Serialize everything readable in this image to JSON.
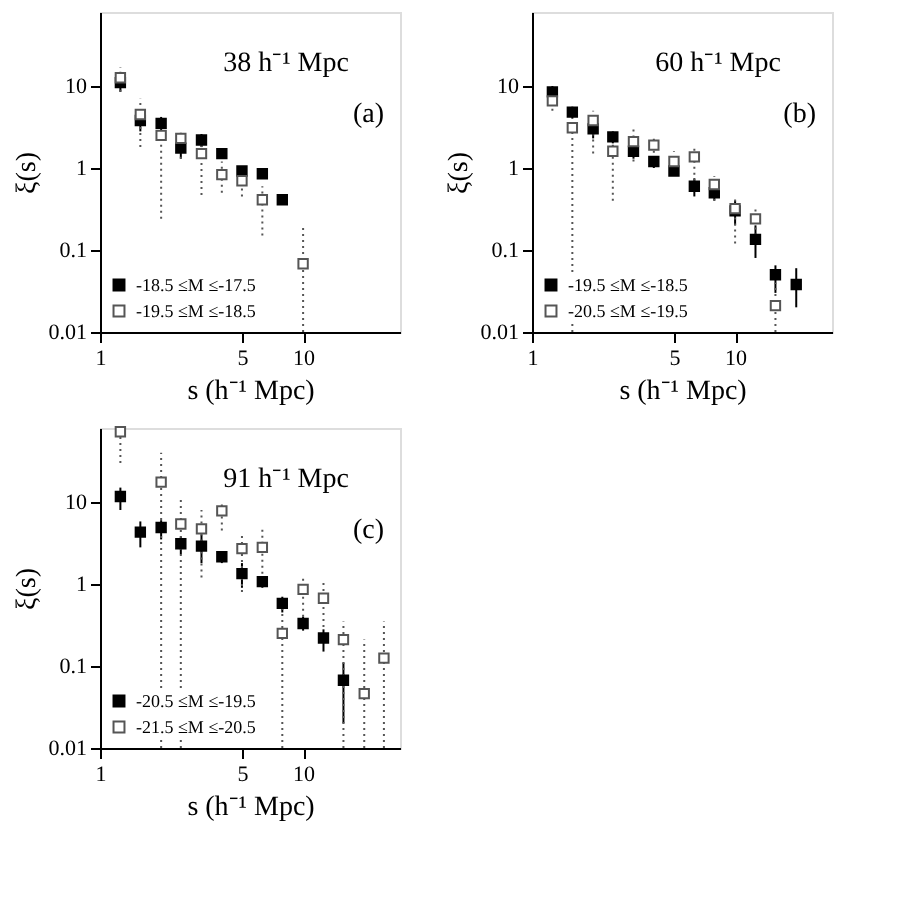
{
  "chart_data": [
    {
      "type": "scatter",
      "title": "38 h⁻¹ Mpc",
      "annotations": [
        "(a)"
      ],
      "xlabel": "s (h⁻¹ Mpc)",
      "ylabel": "ξ(s)",
      "log": "xy",
      "xlim": [
        1,
        30
      ],
      "xticks": [
        1,
        5,
        10
      ],
      "ylim": [
        0.01,
        80
      ],
      "yticks": [
        0.01,
        0.1,
        1,
        10
      ],
      "grid": false,
      "legend": "bottom left",
      "marker": "square",
      "series": [
        {
          "name": "-18.5 ≤M ≤-17.5",
          "color": "#000000",
          "line_style": "solid",
          "x": [
            1.26,
            1.58,
            2.0,
            2.5,
            3.16,
            3.98,
            5.0,
            6.3,
            7.9
          ],
          "values": [
            11,
            3.8,
            3.5,
            1.75,
            2.2,
            1.5,
            0.92,
            0.85,
            0.41
          ],
          "errors": [
            [
              8.5,
              13
            ],
            [
              2.8,
              5
            ],
            [
              2.8,
              4.2
            ],
            [
              1.3,
              2.2
            ],
            [
              1.8,
              2.6
            ],
            [
              1.3,
              1.7
            ],
            [
              0.8,
              1.05
            ],
            [
              0.75,
              0.95
            ],
            null
          ]
        },
        {
          "name": "-19.5 ≤M ≤-18.5",
          "color": "#555555",
          "line_style": "dotted",
          "x": [
            1.26,
            1.58,
            2.0,
            2.5,
            3.16,
            3.98,
            5.0,
            6.3,
            10
          ],
          "values": [
            12.6,
            4.5,
            2.5,
            2.3,
            1.5,
            0.83,
            0.7,
            0.41,
            0.068
          ],
          "errors": [
            [
              8.5,
              17
            ],
            [
              1.8,
              7
            ],
            [
              0.24,
              3.2
            ],
            [
              1.3,
              2.8
            ],
            [
              0.47,
              2.2
            ],
            [
              0.5,
              1.2
            ],
            [
              0.45,
              1.0
            ],
            [
              0.15,
              0.6
            ],
            [
              0.01,
              0.2
            ]
          ]
        }
      ]
    },
    {
      "type": "scatter",
      "title": "60 h⁻¹ Mpc",
      "annotations": [
        "(b)"
      ],
      "xlabel": "s (h⁻¹ Mpc)",
      "ylabel": "ξ(s)",
      "log": "xy",
      "xlim": [
        1,
        30
      ],
      "xticks": [
        1,
        5,
        10
      ],
      "ylim": [
        0.01,
        80
      ],
      "yticks": [
        0.01,
        0.1,
        1,
        10
      ],
      "grid": false,
      "legend": "bottom left",
      "marker": "square",
      "series": [
        {
          "name": "-19.5 ≤M ≤-18.5",
          "color": "#000000",
          "line_style": "solid",
          "x": [
            1.26,
            1.58,
            2.0,
            2.5,
            3.16,
            3.98,
            5.0,
            6.3,
            7.9,
            10,
            12.6,
            15.8,
            20
          ],
          "values": [
            8.5,
            4.8,
            3.0,
            2.4,
            1.6,
            1.2,
            0.92,
            0.6,
            0.5,
            0.3,
            0.135,
            0.05,
            0.038
          ],
          "errors": [
            [
              7,
              10
            ],
            [
              4,
              5.6
            ],
            [
              2.3,
              3.6
            ],
            [
              2.0,
              2.8
            ],
            [
              1.3,
              1.9
            ],
            [
              1.0,
              1.4
            ],
            [
              0.8,
              1.05
            ],
            [
              0.45,
              0.75
            ],
            [
              0.4,
              0.6
            ],
            [
              0.2,
              0.4
            ],
            [
              0.08,
              0.2
            ],
            [
              0.03,
              0.065
            ],
            [
              0.02,
              0.06
            ]
          ]
        },
        {
          "name": "-20.5 ≤M ≤-19.5",
          "color": "#555555",
          "line_style": "dotted",
          "x": [
            1.26,
            1.58,
            2.0,
            2.5,
            3.16,
            3.98,
            5.0,
            6.3,
            7.9,
            10,
            12.6,
            15.8
          ],
          "values": [
            6.6,
            3.1,
            3.8,
            1.6,
            2.1,
            1.9,
            1.2,
            1.37,
            0.63,
            0.32,
            0.24,
            0.021
          ],
          "errors": [
            [
              5,
              8
            ],
            [
              0.01,
              3.6
            ],
            [
              1.5,
              5
            ],
            [
              0.4,
              2.2
            ],
            [
              1.2,
              3
            ],
            [
              1.1,
              2.4
            ],
            [
              0.8,
              1.6
            ],
            [
              0.7,
              1.8
            ],
            [
              0.4,
              0.8
            ],
            [
              0.12,
              0.45
            ],
            [
              0.15,
              0.32
            ],
            [
              0.01,
              0.04
            ]
          ]
        }
      ]
    },
    {
      "type": "scatter",
      "title": "91 h⁻¹ Mpc",
      "annotations": [
        "(c)"
      ],
      "xlabel": "s (h⁻¹ Mpc)",
      "ylabel": "ξ(s)",
      "log": "xy",
      "xlim": [
        1,
        30
      ],
      "xticks": [
        1,
        5,
        10
      ],
      "ylim": [
        0.01,
        80
      ],
      "yticks": [
        0.01,
        0.1,
        1,
        10
      ],
      "grid": false,
      "legend": "bottom left",
      "marker": "square",
      "series": [
        {
          "name": "-20.5 ≤M ≤-19.5",
          "color": "#000000",
          "line_style": "solid",
          "x": [
            1.26,
            1.58,
            2.0,
            2.5,
            3.16,
            3.98,
            5.0,
            6.3,
            7.9,
            10,
            12.6,
            15.8
          ],
          "values": [
            11.7,
            4.3,
            4.9,
            3.1,
            2.9,
            2.15,
            1.34,
            1.07,
            0.58,
            0.33,
            0.22,
            0.067
          ],
          "errors": [
            [
              8,
              15
            ],
            [
              2.8,
              5.8
            ],
            [
              3.5,
              6
            ],
            [
              2.3,
              3.8
            ],
            [
              1.8,
              4
            ],
            [
              1.8,
              2.5
            ],
            [
              0.9,
              1.8
            ],
            [
              0.9,
              1.25
            ],
            [
              0.45,
              0.7
            ],
            [
              0.27,
              0.4
            ],
            [
              0.15,
              0.28
            ],
            [
              0.02,
              0.11
            ]
          ]
        },
        {
          "name": "-21.5 ≤M ≤-20.5",
          "color": "#555555",
          "line_style": "dotted",
          "x": [
            1.26,
            2.0,
            2.5,
            3.16,
            3.98,
            5.0,
            6.3,
            7.9,
            10,
            12.6,
            15.8,
            20,
            25
          ],
          "values": [
            72,
            17.5,
            5.4,
            4.7,
            7.8,
            2.7,
            2.8,
            0.25,
            0.86,
            0.67,
            0.21,
            0.046,
            0.125
          ],
          "errors": [
            [
              30,
              78
            ],
            [
              0.01,
              40
            ],
            [
              0.01,
              11
            ],
            [
              1.2,
              8
            ],
            [
              4.5,
              9.5
            ],
            [
              0.8,
              4
            ],
            [
              0.95,
              4.6
            ],
            [
              0.01,
              0.55
            ],
            [
              0.4,
              1.3
            ],
            [
              0.3,
              1.1
            ],
            [
              0.01,
              0.35
            ],
            [
              0.01,
              0.21
            ],
            [
              0.01,
              0.35
            ]
          ]
        }
      ]
    }
  ]
}
